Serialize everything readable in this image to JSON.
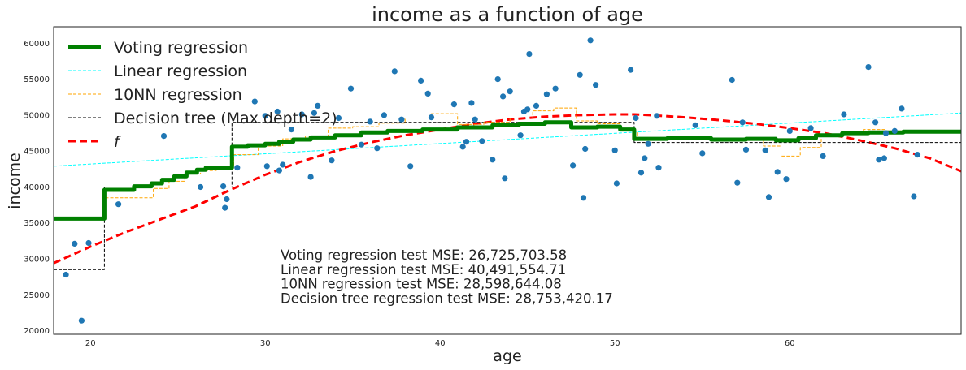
{
  "chart_data": {
    "type": "line+scatter",
    "title": "income as a function of age",
    "xlabel": "age",
    "ylabel": "income",
    "xlim": [
      17.9,
      69.8
    ],
    "ylim": [
      19500,
      62300
    ],
    "xticks": [
      20,
      30,
      40,
      50,
      60
    ],
    "yticks": [
      20000,
      25000,
      30000,
      35000,
      40000,
      45000,
      50000,
      55000,
      60000
    ],
    "grid": false,
    "legend_placement": "top-left",
    "annotations": [
      "Voting regression test MSE: 26,725,703.58",
      "Linear regression test MSE: 40,491,554.71",
      "10NN regression test MSE: 28,598,644.08",
      "Decision tree regression test MSE: 28,753,420.17"
    ],
    "legend": [
      {
        "name": "Voting regression",
        "color": "#008000",
        "width": 5,
        "dash": ""
      },
      {
        "name": "Linear regression",
        "color": "#00ffff",
        "width": 1,
        "dash": "4,2"
      },
      {
        "name": "10NN regression",
        "color": "#ffa500",
        "width": 1,
        "dash": "4,2"
      },
      {
        "name": "Decision tree (Max depth=2)",
        "color": "#000000",
        "width": 1,
        "dash": "4,2"
      },
      {
        "name": "f",
        "color": "#ff0000",
        "width": 3,
        "dash": "9,5"
      }
    ],
    "scatter": {
      "name": "data",
      "color": "#1f77b4",
      "points": [
        [
          18.6,
          27800
        ],
        [
          19.1,
          32100
        ],
        [
          19.5,
          21400
        ],
        [
          19.9,
          32200
        ],
        [
          21.6,
          37600
        ],
        [
          24.2,
          47100
        ],
        [
          26.3,
          40000
        ],
        [
          27.6,
          40100
        ],
        [
          27.7,
          37100
        ],
        [
          27.8,
          38300
        ],
        [
          28.4,
          42700
        ],
        [
          29.4,
          51900
        ],
        [
          30.0,
          49900
        ],
        [
          30.7,
          50500
        ],
        [
          30.1,
          42900
        ],
        [
          30.8,
          42300
        ],
        [
          31.0,
          43100
        ],
        [
          31.5,
          48000
        ],
        [
          32.1,
          50100
        ],
        [
          32.6,
          41400
        ],
        [
          32.8,
          50300
        ],
        [
          33.0,
          51300
        ],
        [
          33.8,
          43700
        ],
        [
          34.2,
          49600
        ],
        [
          34.9,
          53700
        ],
        [
          35.5,
          45900
        ],
        [
          36.0,
          49100
        ],
        [
          36.4,
          45400
        ],
        [
          36.8,
          50000
        ],
        [
          37.4,
          56100
        ],
        [
          37.8,
          49400
        ],
        [
          38.3,
          42900
        ],
        [
          38.9,
          54800
        ],
        [
          39.3,
          53000
        ],
        [
          39.5,
          49700
        ],
        [
          40.8,
          51500
        ],
        [
          41.3,
          45600
        ],
        [
          41.5,
          46300
        ],
        [
          41.8,
          51700
        ],
        [
          42.0,
          49400
        ],
        [
          42.4,
          46400
        ],
        [
          43.0,
          43800
        ],
        [
          43.3,
          55000
        ],
        [
          43.6,
          52600
        ],
        [
          43.7,
          41200
        ],
        [
          44.0,
          53300
        ],
        [
          44.6,
          47200
        ],
        [
          44.8,
          50500
        ],
        [
          45.0,
          50800
        ],
        [
          45.1,
          58500
        ],
        [
          45.5,
          51300
        ],
        [
          46.1,
          52900
        ],
        [
          46.6,
          53700
        ],
        [
          47.6,
          43000
        ],
        [
          48.0,
          55600
        ],
        [
          48.2,
          38500
        ],
        [
          48.3,
          45300
        ],
        [
          48.6,
          60400
        ],
        [
          48.9,
          54200
        ],
        [
          50.0,
          45100
        ],
        [
          50.1,
          40500
        ],
        [
          50.9,
          56300
        ],
        [
          51.2,
          49600
        ],
        [
          51.5,
          42000
        ],
        [
          51.7,
          44000
        ],
        [
          51.9,
          46000
        ],
        [
          52.4,
          49900
        ],
        [
          52.5,
          42700
        ],
        [
          54.6,
          48600
        ],
        [
          55.0,
          44700
        ],
        [
          56.7,
          54900
        ],
        [
          57.0,
          40600
        ],
        [
          57.3,
          49000
        ],
        [
          57.5,
          45200
        ],
        [
          58.6,
          45100
        ],
        [
          58.8,
          38600
        ],
        [
          59.3,
          42100
        ],
        [
          59.8,
          41100
        ],
        [
          60.0,
          47800
        ],
        [
          61.2,
          48200
        ],
        [
          61.9,
          44300
        ],
        [
          63.1,
          50100
        ],
        [
          64.5,
          56700
        ],
        [
          64.9,
          49000
        ],
        [
          65.1,
          43800
        ],
        [
          65.4,
          44000
        ],
        [
          65.5,
          47500
        ],
        [
          66.0,
          47800
        ],
        [
          66.4,
          50900
        ],
        [
          67.1,
          38700
        ],
        [
          67.3,
          44500
        ]
      ]
    },
    "series": [
      {
        "name": "Linear regression",
        "x": [
          17.9,
          69.8
        ],
        "y": [
          42900,
          50300
        ]
      },
      {
        "name": "f",
        "x": [
          17.9,
          20,
          22,
          24,
          26,
          28,
          30,
          32,
          34,
          36,
          38,
          40,
          42,
          44,
          46,
          48,
          50,
          51.1,
          52,
          54,
          56,
          58,
          60,
          62,
          64,
          66,
          68,
          69.8
        ],
        "y": [
          29400,
          31700,
          33700,
          35500,
          37300,
          39600,
          41700,
          43500,
          45000,
          46200,
          47200,
          48000,
          48800,
          49400,
          49800,
          50000,
          50100,
          50100,
          50000,
          49700,
          49300,
          48800,
          48200,
          47500,
          46500,
          45400,
          44000,
          42200
        ]
      },
      {
        "name": "Decision tree (Max depth=2)",
        "x": [
          17.9,
          20.8,
          20.8,
          28.1,
          28.1,
          51.1,
          51.1,
          69.8
        ],
        "y": [
          28500,
          28500,
          40000,
          40000,
          49000,
          49000,
          46200,
          46200
        ]
      },
      {
        "name": "10NN regression",
        "x": [
          17.9,
          20.8,
          20.8,
          23.6,
          23.6,
          24.5,
          24.5,
          25.4,
          25.4,
          26.3,
          26.3,
          27.2,
          27.2,
          28.2,
          28.2,
          29.6,
          29.6,
          31.0,
          31.0,
          32.3,
          32.3,
          33.6,
          33.6,
          35.0,
          35.0,
          36.5,
          36.5,
          38.0,
          38.0,
          39.5,
          39.5,
          41.0,
          41.0,
          42.5,
          42.5,
          44.0,
          44.0,
          45.3,
          45.3,
          46.5,
          46.5,
          47.8,
          47.8,
          49.0,
          49.0,
          50.3,
          50.3,
          51.3,
          51.3,
          53.0,
          53.0,
          55.0,
          55.0,
          57.0,
          57.0,
          58.5,
          58.5,
          59.5,
          59.5,
          60.6,
          60.6,
          61.8,
          61.8,
          63.0,
          63.0,
          64.2,
          64.2,
          65.5,
          65.5,
          69.8
        ],
        "y": [
          35500,
          35500,
          38500,
          38500,
          39800,
          39800,
          40800,
          40800,
          41800,
          41800,
          42300,
          42300,
          42800,
          42800,
          44500,
          44500,
          45700,
          45700,
          46700,
          46700,
          47100,
          47100,
          48200,
          48200,
          48400,
          48400,
          48900,
          48900,
          49600,
          49600,
          50200,
          50200,
          48700,
          48700,
          49000,
          49000,
          49600,
          49600,
          50600,
          50600,
          51000,
          51000,
          49200,
          49200,
          48800,
          48800,
          47800,
          47800,
          46800,
          46800,
          47000,
          47000,
          46700,
          46700,
          46500,
          46500,
          45700,
          45700,
          44300,
          44300,
          45500,
          45500,
          47000,
          47000,
          47600,
          47600,
          48000,
          48000,
          47800,
          47800
        ]
      },
      {
        "name": "Voting regression",
        "x": [
          17.9,
          20.8,
          20.8,
          22.5,
          22.5,
          23.5,
          23.5,
          24.1,
          24.1,
          24.8,
          24.8,
          25.5,
          25.5,
          26.1,
          26.1,
          26.6,
          26.6,
          28.1,
          28.1,
          29.0,
          29.0,
          30.0,
          30.0,
          30.8,
          30.8,
          31.6,
          31.6,
          32.6,
          32.6,
          34.0,
          34.0,
          35.5,
          35.5,
          37.0,
          37.0,
          39.0,
          39.0,
          41.0,
          41.0,
          43.0,
          43.0,
          44.5,
          44.5,
          46.0,
          46.0,
          47.5,
          47.5,
          49.0,
          49.0,
          50.3,
          50.3,
          51.1,
          51.1,
          53.0,
          53.0,
          55.5,
          55.5,
          57.5,
          57.5,
          59.2,
          59.2,
          60.5,
          60.5,
          61.5,
          61.5,
          63.0,
          63.0,
          64.5,
          64.5,
          66.5,
          66.5,
          69.8
        ],
        "y": [
          35600,
          35600,
          39600,
          39600,
          40100,
          40100,
          40500,
          40500,
          41000,
          41000,
          41500,
          41500,
          42000,
          42000,
          42400,
          42400,
          42700,
          42700,
          45600,
          45600,
          45800,
          45800,
          46000,
          46000,
          46300,
          46300,
          46600,
          46600,
          46900,
          46900,
          47200,
          47200,
          47600,
          47600,
          47800,
          47800,
          48000,
          48000,
          48300,
          48300,
          48600,
          48600,
          48800,
          48800,
          49000,
          49000,
          48300,
          48300,
          48400,
          48400,
          48000,
          48000,
          46700,
          46700,
          46800,
          46800,
          46600,
          46600,
          46700,
          46700,
          46500,
          46500,
          46800,
          46800,
          47200,
          47200,
          47500,
          47500,
          47600,
          47600,
          47700,
          47700
        ]
      }
    ]
  }
}
